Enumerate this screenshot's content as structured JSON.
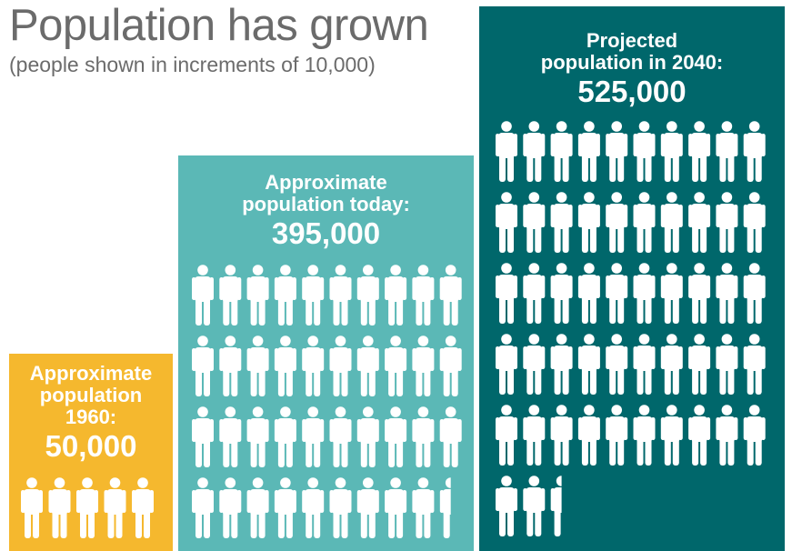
{
  "chart_data": {
    "type": "pictograph",
    "title": "Population has grown",
    "subtitle": "(people shown in increments of 10,000)",
    "unit": 10000,
    "colors": {
      "1960": "#f5b82e",
      "today": "#5bb8b6",
      "2040": "#00676b",
      "icon": "#ffffff",
      "text": "#6b6b6b"
    },
    "series": [
      {
        "key": "1960",
        "label_lines": [
          "Approximate",
          "population",
          "1960:"
        ],
        "value_label": "50,000",
        "value": 50000
      },
      {
        "key": "today",
        "label_lines": [
          "Approximate",
          "population today:"
        ],
        "value_label": "395,000",
        "value": 395000
      },
      {
        "key": "2040",
        "label_lines": [
          "Projected",
          "population in 2040:"
        ],
        "value_label": "525,000",
        "value": 525000
      }
    ]
  }
}
